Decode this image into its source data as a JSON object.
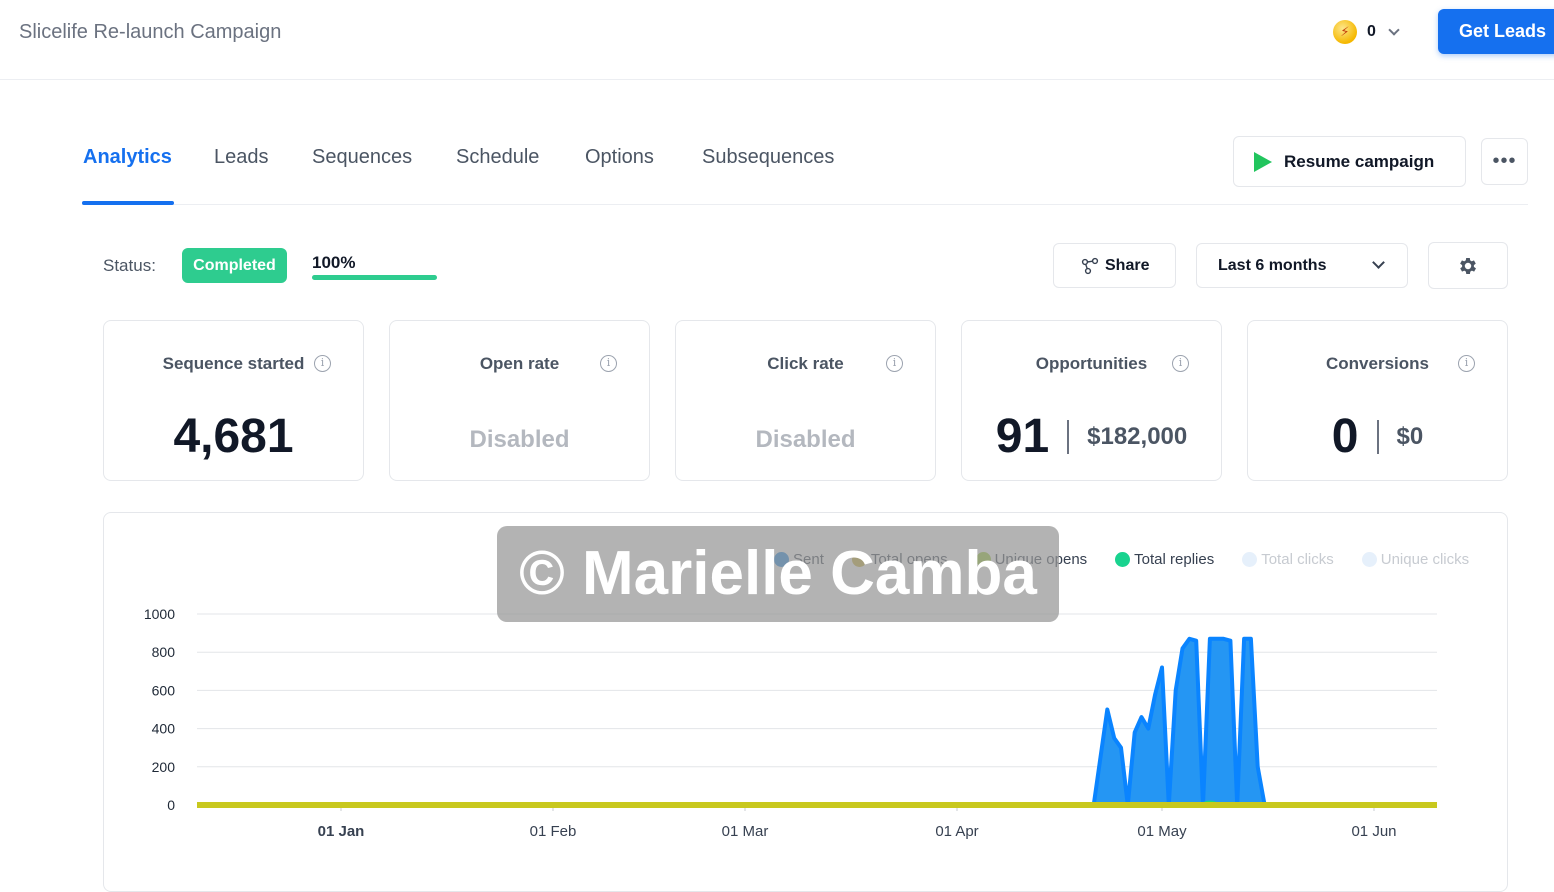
{
  "header": {
    "title": "Slicelife Re-launch Campaign",
    "credits": "0",
    "get_leads_label": "Get Leads"
  },
  "tabs": [
    {
      "label": "Analytics",
      "active": true
    },
    {
      "label": "Leads"
    },
    {
      "label": "Sequences"
    },
    {
      "label": "Schedule"
    },
    {
      "label": "Options"
    },
    {
      "label": "Subsequences"
    }
  ],
  "actions": {
    "resume_label": "Resume campaign",
    "more_label": "•••",
    "share_label": "Share",
    "range_label": "Last 6 months"
  },
  "status": {
    "label": "Status:",
    "badge": "Completed",
    "progress_text": "100%",
    "progress_fraction": 1.0
  },
  "cards": [
    {
      "title": "Sequence started",
      "value": "4,681"
    },
    {
      "title": "Open rate",
      "value": "Disabled"
    },
    {
      "title": "Click rate",
      "value": "Disabled"
    },
    {
      "title": "Opportunities",
      "value": "91",
      "amount": "$182,000"
    },
    {
      "title": "Conversions",
      "value": "0",
      "amount": "$0"
    }
  ],
  "watermark": "© Marielle Camba",
  "chart_data": {
    "type": "area",
    "ylim": [
      0,
      1000
    ],
    "yticks": [
      "1000",
      "800",
      "600",
      "400",
      "200",
      "0"
    ],
    "xticks": [
      "01 Jan",
      "01 Feb",
      "01 Mar",
      "01 Apr",
      "01 May",
      "01 Jun"
    ],
    "legend": [
      {
        "name": "Sent",
        "color": "#1e88e5",
        "active": true
      },
      {
        "name": "Total opens",
        "color": "#c9b037",
        "active": true
      },
      {
        "name": "Unique opens",
        "color": "#9acd32",
        "active": true
      },
      {
        "name": "Total replies",
        "color": "#19d38f",
        "active": true
      },
      {
        "name": "Total clicks",
        "color": "#e6f0fb",
        "active": false
      },
      {
        "name": "Unique clicks",
        "color": "#e6f0fb",
        "active": false
      }
    ],
    "colors": {
      "sent_fill": "#2596f3",
      "sent_stroke": "#0a84ff",
      "opens_line": "#c8c81e"
    },
    "series": [
      {
        "name": "Sent",
        "x": [
          "Apr 21",
          "Apr 23",
          "Apr 24",
          "Apr 25",
          "Apr 26",
          "Apr 27",
          "Apr 28",
          "Apr 29",
          "Apr 30",
          "May 1",
          "May 2",
          "May 3",
          "May 4",
          "May 5",
          "May 6",
          "May 7",
          "May 8",
          "May 9",
          "May 10",
          "May 11",
          "May 12",
          "May 13",
          "May 14",
          "May 15",
          "May 16",
          "May 17",
          "May 18",
          "May 19",
          "May 20",
          "May 21",
          "May 22",
          "May 23"
        ],
        "values": [
          0,
          500,
          350,
          300,
          0,
          380,
          460,
          400,
          580,
          720,
          0,
          600,
          820,
          870,
          860,
          0,
          870,
          870,
          870,
          860,
          0,
          870,
          870,
          200,
          0,
          0,
          0,
          0,
          0,
          0,
          0,
          0
        ]
      },
      {
        "name": "Total opens",
        "values": [
          0
        ]
      },
      {
        "name": "Total replies",
        "values": [
          0
        ]
      }
    ]
  }
}
